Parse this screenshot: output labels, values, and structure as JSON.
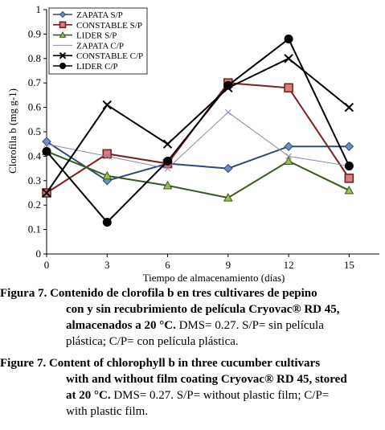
{
  "chart_data": {
    "type": "line",
    "xlabel": "Tiempo de almacenamiento (días)",
    "ylabel": "Clorofila b (mg g-1)",
    "x": [
      0,
      3,
      6,
      9,
      12,
      15
    ],
    "x_ticks": [
      "0",
      "3",
      "6",
      "9",
      "12",
      "15"
    ],
    "y_ticks": [
      "0",
      "0.1",
      "0.2",
      "0.3",
      "0.4",
      "0.5",
      "0.6",
      "0.7",
      "0.8",
      "0.9",
      "1"
    ],
    "ylim": [
      0,
      1
    ],
    "grid": false,
    "legend_position": "top-left",
    "series": [
      {
        "name": "ZAPATA S/P",
        "marker": "diamond",
        "color": "#2e4a7a",
        "fill": "#6f8fc0",
        "values": [
          0.46,
          0.3,
          0.37,
          0.35,
          0.44,
          0.44
        ]
      },
      {
        "name": "CONSTABLE S/P",
        "marker": "square",
        "color": "#7a2020",
        "fill": "#d38080",
        "values": [
          0.25,
          0.41,
          0.37,
          0.7,
          0.68,
          0.31
        ]
      },
      {
        "name": "LIDER S/P",
        "marker": "triangle",
        "color": "#3a5a20",
        "fill": "#9bbb59",
        "values": [
          0.42,
          0.32,
          0.28,
          0.23,
          0.38,
          0.26
        ]
      },
      {
        "name": "ZAPATA C/P",
        "marker": "x",
        "color": "#8888aa",
        "values": [
          0.45,
          0.4,
          0.35,
          0.58,
          0.4,
          0.36
        ]
      },
      {
        "name": "CONSTABLE C/P",
        "marker": "star",
        "color": "#000000",
        "values": [
          0.25,
          0.61,
          0.45,
          0.68,
          0.8,
          0.6
        ]
      },
      {
        "name": "LIDER C/P",
        "marker": "circle",
        "color": "#000000",
        "fill": "#000000",
        "values": [
          0.42,
          0.13,
          0.38,
          0.69,
          0.88,
          0.36
        ]
      }
    ]
  },
  "caption_es": {
    "label": "Figura 7.",
    "lines": [
      "Contenido de clorofila b en tres cultivares de pepino",
      "con y sin recubrimiento de película Cryovac® RD 45,"
    ],
    "last_bold": "almacenados a 20 °C.",
    "last_rest": " DMS= 0.27. S/P= sin película",
    "final": "plástica; C/P= con película plástica."
  },
  "caption_en": {
    "label": "Figure 7.",
    "line1": "Content of chlorophyll b in three cucumber cultivars",
    "line2": "with and without film coating Cryovac® RD 45, stored",
    "line3_bold": "at 20 °C.",
    "line3_rest": " DMS= 0.27. S/P= without plastic film; C/P=",
    "final": "with plastic film."
  }
}
